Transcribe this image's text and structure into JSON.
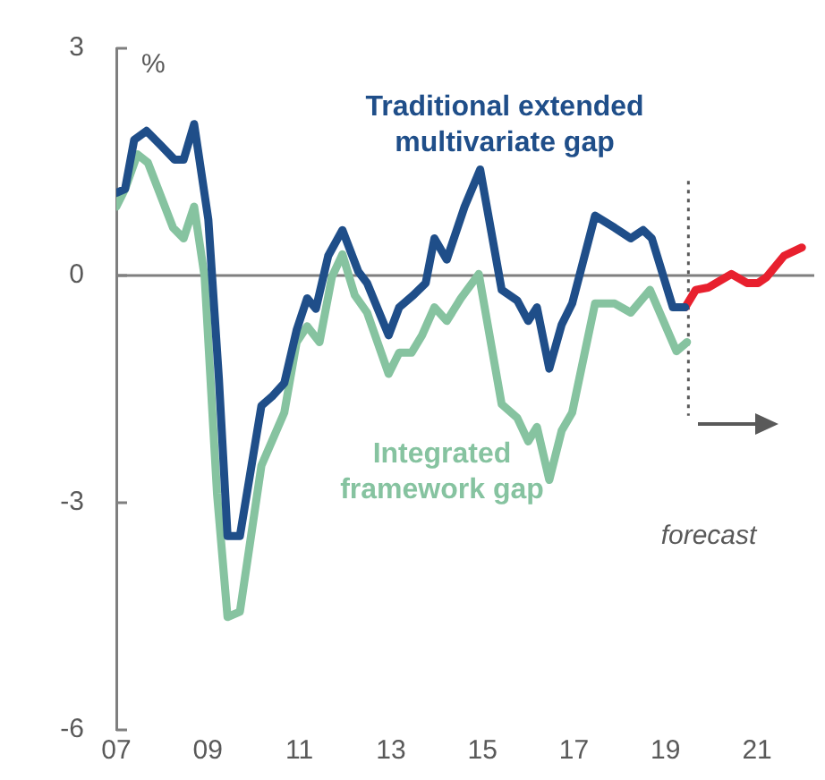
{
  "chart_data": {
    "type": "line",
    "ylabel": "%",
    "xlim": [
      2007,
      2022.25
    ],
    "xticks": [
      {
        "value": 2007,
        "label": "07"
      },
      {
        "value": 2009,
        "label": "09"
      },
      {
        "value": 2011,
        "label": "11"
      },
      {
        "value": 2013,
        "label": "13"
      },
      {
        "value": 2015,
        "label": "15"
      },
      {
        "value": 2017,
        "label": "17"
      },
      {
        "value": 2019,
        "label": "19"
      },
      {
        "value": 2021,
        "label": "21"
      }
    ],
    "ylim": [
      -6,
      3
    ],
    "yticks": [
      -6,
      -3,
      0,
      3
    ],
    "grid": false,
    "legend": false,
    "marker": "none",
    "line_style": "solid",
    "series": [
      {
        "name": "Traditional extended multivariate gap",
        "color": "#1f4e89",
        "x": [
          2007,
          2007.19,
          2007.39,
          2007.66,
          2007.97,
          2008.27,
          2008.47,
          2008.7,
          2009.01,
          2009.24,
          2009.43,
          2009.7,
          2010.17,
          2010.4,
          2010.67,
          2010.94,
          2011.17,
          2011.36,
          2011.63,
          2011.94,
          2012.29,
          2012.48,
          2012.95,
          2013.18,
          2013.49,
          2013.76,
          2013.95,
          2014.22,
          2014.61,
          2014.95,
          2015.42,
          2015.76,
          2016,
          2016.19,
          2016.46,
          2016.73,
          2016.96,
          2017.46,
          2017.89,
          2018.24,
          2018.51,
          2018.7,
          2019.16,
          2019.43
        ],
        "values": [
          1.09,
          1.14,
          1.79,
          1.91,
          1.72,
          1.53,
          1.53,
          2.0,
          0.74,
          -1.35,
          -3.44,
          -3.44,
          -1.72,
          -1.6,
          -1.42,
          -0.72,
          -0.3,
          -0.44,
          0.26,
          0.6,
          0.05,
          -0.1,
          -0.79,
          -0.42,
          -0.26,
          -0.1,
          0.49,
          0.21,
          0.91,
          1.4,
          -0.19,
          -0.33,
          -0.6,
          -0.42,
          -1.23,
          -0.65,
          -0.37,
          0.79,
          0.63,
          0.49,
          0.6,
          0.49,
          -0.42,
          -0.42
        ]
      },
      {
        "name": "Integrated framework gap",
        "color": "#86c3a0",
        "x": [
          2007,
          2007.19,
          2007.46,
          2007.69,
          2008.24,
          2008.47,
          2008.7,
          2008.93,
          2009.2,
          2009.43,
          2009.7,
          2010.17,
          2010.67,
          2010.94,
          2011.17,
          2011.44,
          2011.71,
          2011.94,
          2012.21,
          2012.48,
          2012.95,
          2013.18,
          2013.45,
          2013.68,
          2013.95,
          2014.22,
          2014.53,
          2014.92,
          2015.42,
          2015.76,
          2016,
          2016.19,
          2016.46,
          2016.73,
          2016.96,
          2017.46,
          2017.89,
          2018.24,
          2018.66,
          2019.24,
          2019.47
        ],
        "values": [
          0.91,
          1.14,
          1.6,
          1.49,
          0.63,
          0.49,
          0.91,
          -0.02,
          -2.88,
          -4.51,
          -4.44,
          -2.51,
          -1.81,
          -0.88,
          -0.67,
          -0.88,
          -0.02,
          0.28,
          -0.26,
          -0.49,
          -1.3,
          -1.02,
          -1.02,
          -0.79,
          -0.42,
          -0.6,
          -0.3,
          0.02,
          -1.7,
          -1.88,
          -2.19,
          -2.0,
          -2.7,
          -2.05,
          -1.81,
          -0.37,
          -0.37,
          -0.49,
          -0.19,
          -1.0,
          -0.88
        ]
      },
      {
        "color": "#e8202e",
        "x": [
          2019.43,
          2019.66,
          2019.93,
          2020.44,
          2020.78,
          2021.02,
          2021.21,
          2021.59,
          2021.98
        ],
        "values": [
          -0.42,
          -0.19,
          -0.16,
          0.02,
          -0.1,
          -0.1,
          -0.02,
          0.26,
          0.37
        ]
      }
    ],
    "ref_lines": [
      {
        "axis": "y",
        "value": 0,
        "color": "#7f7f7f",
        "line_style": "solid"
      },
      {
        "axis": "x",
        "value": 2019.5,
        "color": "#595959",
        "line_style": "dotted"
      }
    ],
    "annotations": [
      "forecast"
    ]
  }
}
